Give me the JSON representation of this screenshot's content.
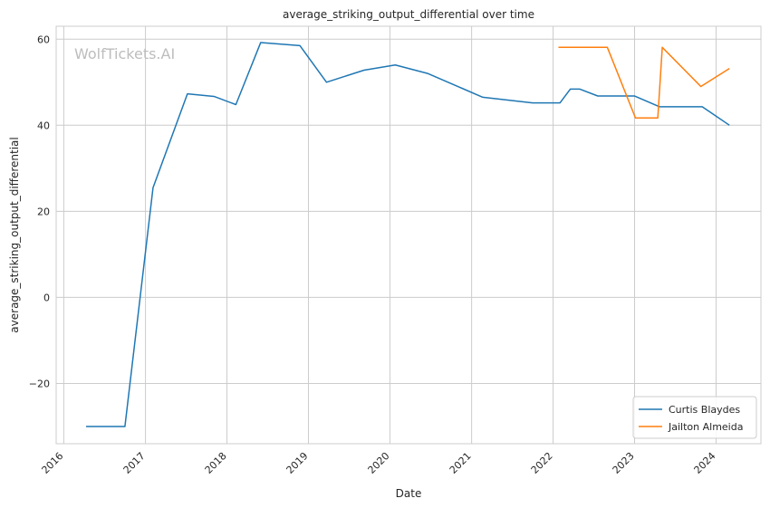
{
  "chart_data": {
    "type": "line",
    "title": "average_striking_output_differential over time",
    "xlabel": "Date",
    "ylabel": "average_striking_output_differential",
    "watermark": "WolfTickets.AI",
    "xlim": [
      "2015-11-28",
      "2024-07-20"
    ],
    "ylim": [
      -34,
      63
    ],
    "xticks": [
      "2016",
      "2017",
      "2018",
      "2019",
      "2020",
      "2021",
      "2022",
      "2023",
      "2024"
    ],
    "yticks": [
      -20,
      0,
      20,
      40,
      60
    ],
    "grid": true,
    "legend_position": "lower-right",
    "series": [
      {
        "name": "Curtis Blaydes",
        "color": "#1f77b4",
        "x": [
          "2016-04-10",
          "2016-10-01",
          "2017-02-04",
          "2017-07-08",
          "2017-11-04",
          "2018-02-10",
          "2018-06-01",
          "2018-11-24",
          "2019-03-23",
          "2019-09-07",
          "2020-01-25",
          "2020-06-20",
          "2021-02-20",
          "2021-10-01",
          "2022-02-01",
          "2022-03-19",
          "2022-05-01",
          "2022-07-20",
          "2022-12-31",
          "2023-04-22",
          "2023-10-31",
          "2024-03-01"
        ],
        "y": [
          -30,
          -30,
          25.5,
          47.3,
          46.7,
          44.8,
          59.2,
          58.5,
          50,
          52.8,
          54,
          52,
          46.5,
          45.2,
          45.2,
          48.4,
          48.4,
          46.8,
          46.8,
          44.3,
          44.3,
          40
        ]
      },
      {
        "name": "Jailton Almeida",
        "color": "#ff7f0e",
        "x": [
          "2022-01-25",
          "2022-09-01",
          "2023-01-05",
          "2023-04-15",
          "2023-05-05",
          "2023-10-25",
          "2024-03-01"
        ],
        "y": [
          58.1,
          58.1,
          41.7,
          41.7,
          58.1,
          49,
          53.2
        ]
      }
    ]
  }
}
